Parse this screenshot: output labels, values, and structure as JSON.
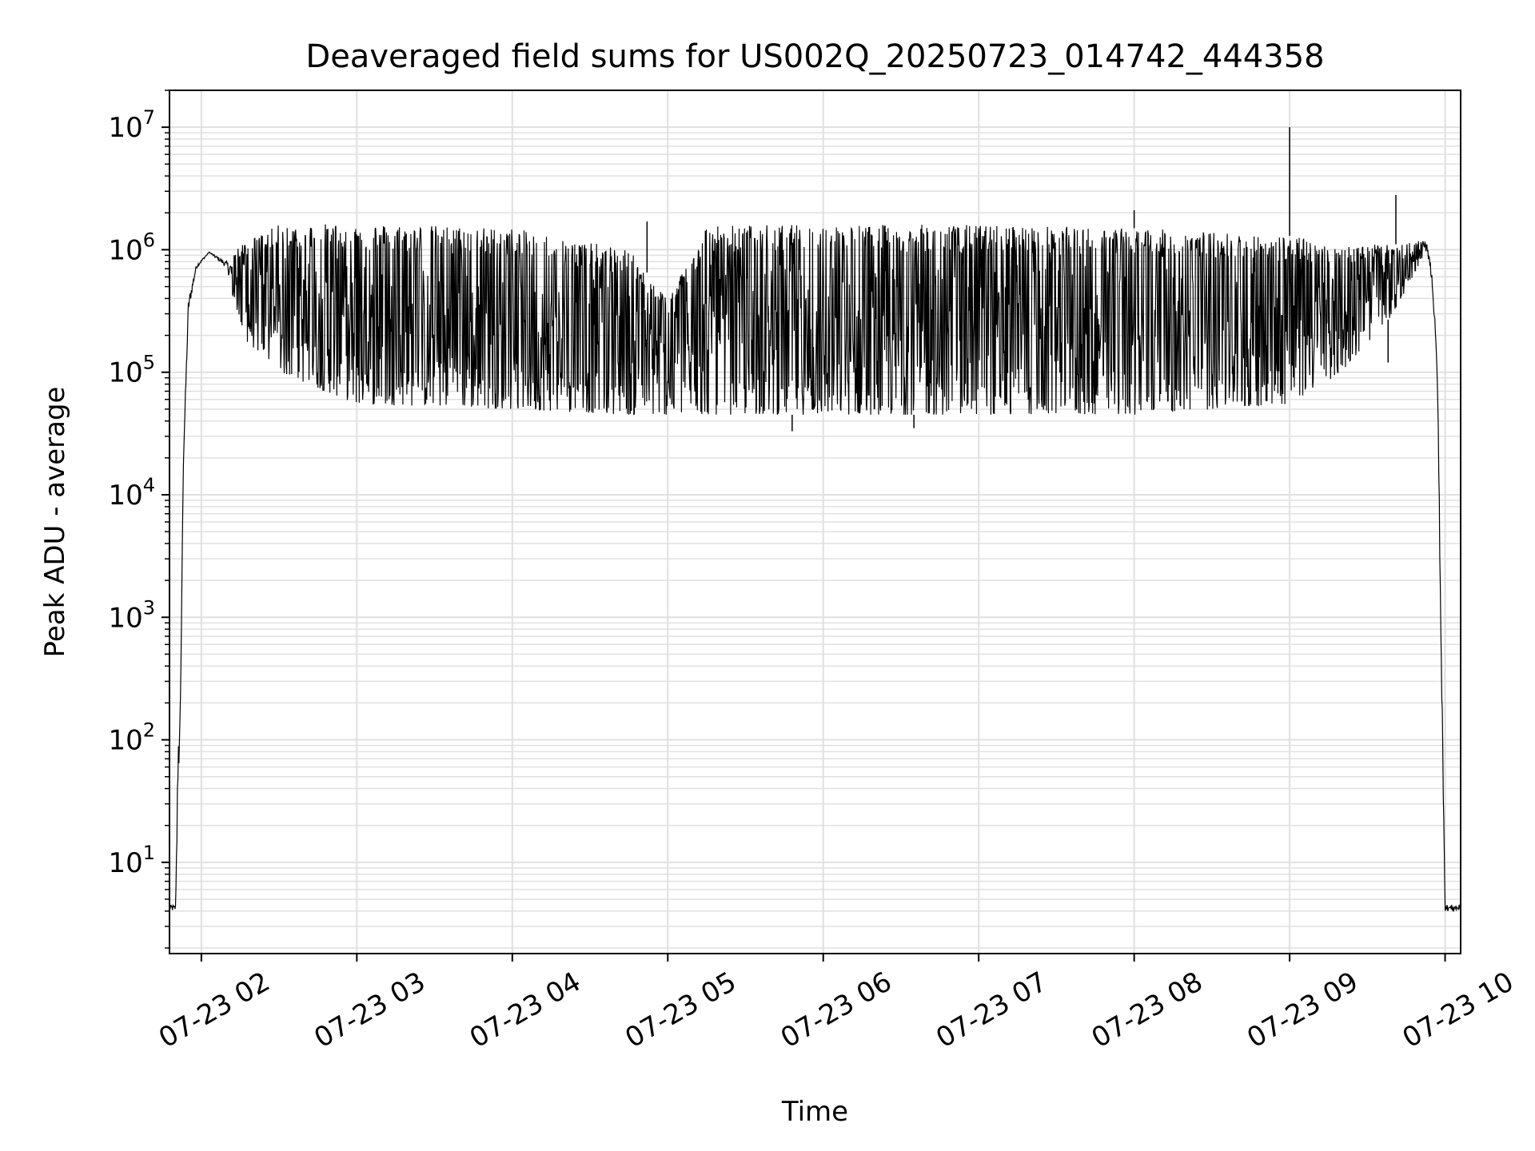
{
  "chart_data": {
    "type": "line",
    "title": "Deaveraged field sums for US002Q_20250723_014742_444358",
    "xlabel": "Time",
    "ylabel": "Peak ADU - average",
    "yscale": "log",
    "ylim": [
      1.8,
      20000000
    ],
    "xlim": [
      "2025-07-23 01:47:42",
      "2025-07-23 10:06:00"
    ],
    "grid": true,
    "line_color": "#000000",
    "grid_color": "#e0e0e0",
    "x_ticks": [
      {
        "value": "2025-07-23 02:00",
        "label": "07-23 02"
      },
      {
        "value": "2025-07-23 03:00",
        "label": "07-23 03"
      },
      {
        "value": "2025-07-23 04:00",
        "label": "07-23 04"
      },
      {
        "value": "2025-07-23 05:00",
        "label": "07-23 05"
      },
      {
        "value": "2025-07-23 06:00",
        "label": "07-23 06"
      },
      {
        "value": "2025-07-23 07:00",
        "label": "07-23 07"
      },
      {
        "value": "2025-07-23 08:00",
        "label": "07-23 08"
      },
      {
        "value": "2025-07-23 09:00",
        "label": "07-23 09"
      },
      {
        "value": "2025-07-23 10:00",
        "label": "07-23 10"
      }
    ],
    "y_ticks": [
      {
        "value": 10,
        "base": "10",
        "exp": "1"
      },
      {
        "value": 100,
        "base": "10",
        "exp": "2"
      },
      {
        "value": 1000,
        "base": "10",
        "exp": "3"
      },
      {
        "value": 10000,
        "base": "10",
        "exp": "4"
      },
      {
        "value": 100000,
        "base": "10",
        "exp": "5"
      },
      {
        "value": 1000000,
        "base": "10",
        "exp": "6"
      },
      {
        "value": 10000000,
        "base": "10",
        "exp": "7"
      }
    ],
    "series": [
      {
        "envelope": [
          {
            "t": "2025-07-23 01:47:42",
            "low": 4,
            "high": 4.5
          },
          {
            "t": "2025-07-23 01:50:00",
            "low": 4,
            "high": 4.5
          },
          {
            "t": "2025-07-23 01:51:00",
            "low": 30,
            "high": 80
          },
          {
            "t": "2025-07-23 01:52:00",
            "low": 200,
            "high": 250
          },
          {
            "t": "2025-07-23 01:53:00",
            "low": 15000,
            "high": 20000
          },
          {
            "t": "2025-07-23 01:55:00",
            "low": 300000,
            "high": 400000
          },
          {
            "t": "2025-07-23 01:58:00",
            "low": 700000,
            "high": 750000
          },
          {
            "t": "2025-07-23 02:03:00",
            "low": 950000,
            "high": 960000
          },
          {
            "t": "2025-07-23 02:10:00",
            "low": 700000,
            "high": 800000
          },
          {
            "t": "2025-07-23 02:15:00",
            "low": 200000,
            "high": 1100000
          },
          {
            "t": "2025-07-23 02:30:00",
            "low": 100000,
            "high": 1600000
          },
          {
            "t": "2025-07-23 03:00:00",
            "low": 55000,
            "high": 1650000
          },
          {
            "t": "2025-07-23 04:00:00",
            "low": 50000,
            "high": 1500000
          },
          {
            "t": "2025-07-23 04:45:00",
            "low": 45000,
            "high": 1000000
          },
          {
            "t": "2025-07-23 05:00:00",
            "low": 45000,
            "high": 400000
          },
          {
            "t": "2025-07-23 05:15:00",
            "low": 45000,
            "high": 1600000
          },
          {
            "t": "2025-07-23 06:00:00",
            "low": 45000,
            "high": 1600000
          },
          {
            "t": "2025-07-23 07:00:00",
            "low": 45000,
            "high": 1600000
          },
          {
            "t": "2025-07-23 08:00:00",
            "low": 45000,
            "high": 1500000
          },
          {
            "t": "2025-07-23 09:00:00",
            "low": 55000,
            "high": 1300000
          },
          {
            "t": "2025-07-23 09:20:00",
            "low": 100000,
            "high": 1100000
          },
          {
            "t": "2025-07-23 09:40:00",
            "low": 300000,
            "high": 1100000
          },
          {
            "t": "2025-07-23 09:53:00",
            "low": 1000000,
            "high": 1200000
          },
          {
            "t": "2025-07-23 09:55:00",
            "low": 500000,
            "high": 700000
          },
          {
            "t": "2025-07-23 09:57:00",
            "low": 80000,
            "high": 120000
          },
          {
            "t": "2025-07-23 09:59:00",
            "low": 80,
            "high": 250
          },
          {
            "t": "2025-07-23 10:00:00",
            "low": 4,
            "high": 4.5
          },
          {
            "t": "2025-07-23 10:06:00",
            "low": 4,
            "high": 4.5
          }
        ],
        "spikes": [
          {
            "t": "2025-07-23 09:00:00",
            "value": 10000000
          },
          {
            "t": "2025-07-23 09:41:00",
            "value": 2800000
          },
          {
            "t": "2025-07-23 08:00:00",
            "value": 2100000
          },
          {
            "t": "2025-07-23 04:52:00",
            "value": 1700000
          },
          {
            "t": "2025-07-23 05:48:00",
            "value": 33000
          },
          {
            "t": "2025-07-23 06:35:00",
            "value": 35000
          },
          {
            "t": "2025-07-23 09:38:00",
            "value": 120000
          }
        ]
      }
    ]
  }
}
